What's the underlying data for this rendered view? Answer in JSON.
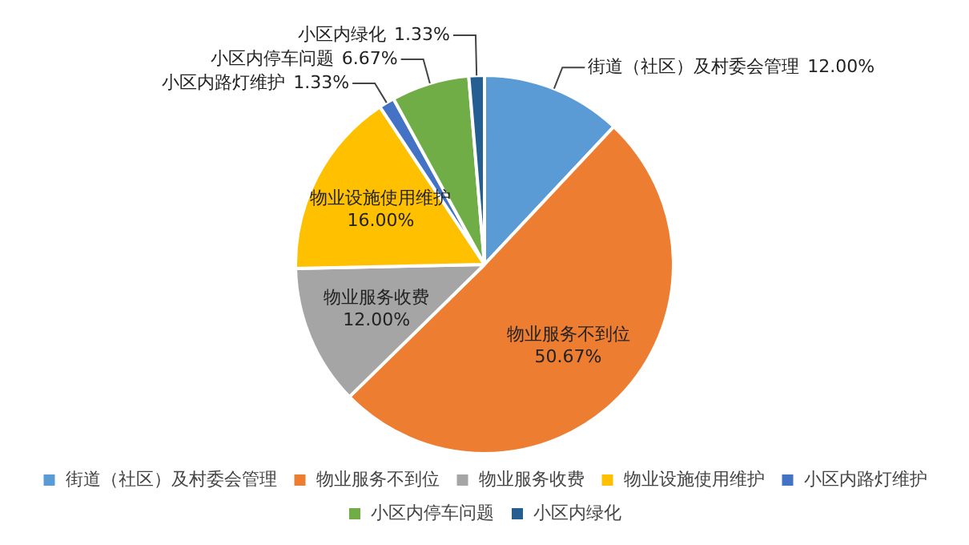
{
  "chart_data": {
    "type": "pie",
    "categories": [
      "街道（社区）及村委会管理",
      "物业服务不到位",
      "物业服务收费",
      "物业设施使用维护",
      "小区内路灯维护",
      "小区内停车问题",
      "小区内绿化"
    ],
    "values": [
      12.0,
      50.67,
      12.0,
      16.0,
      1.33,
      6.67,
      1.33
    ],
    "colors": [
      "#5b9bd5",
      "#ed7d31",
      "#a5a5a5",
      "#ffc000",
      "#4472c4",
      "#70ad47",
      "#255e91"
    ],
    "value_labels": [
      "12.00%",
      "50.67%",
      "12.00%",
      "16.00%",
      "1.33%",
      "6.67%",
      "1.33%"
    ],
    "legend": "bottom"
  }
}
